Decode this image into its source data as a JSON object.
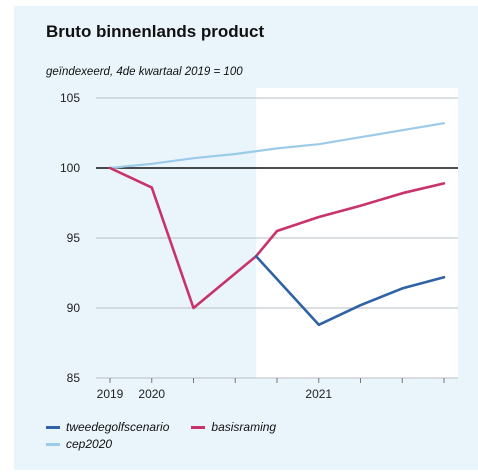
{
  "chart_data": {
    "type": "line",
    "title": "Bruto binnenlands product",
    "subtitle": "geïndexeerd, 4de kwartaal 2019 = 100",
    "xlabel": "",
    "ylabel": "",
    "ylim": [
      85,
      105
    ],
    "yticks": [
      85,
      90,
      95,
      100,
      105
    ],
    "ytick_labels": [
      "85",
      "90",
      "95",
      "100",
      "105"
    ],
    "x_quarters": [
      "2019K4",
      "2020K1",
      "2020K2",
      "2020K3",
      "2020K4",
      "2021K1",
      "2021K2",
      "2021K3",
      "2021K4"
    ],
    "xtick_labels": [
      {
        "label": "2019",
        "at": 0
      },
      {
        "label": "2020",
        "at": 1
      },
      {
        "label": "2021",
        "at": 5
      }
    ],
    "shaded_from": 3.5,
    "reference_line": 100,
    "grid": "horizontal",
    "legend_position": "bottom",
    "series": [
      {
        "name": "tweedegolfscenario",
        "color": "#2f63a5",
        "x": [
          3.5,
          5,
          6,
          7,
          8
        ],
        "values": [
          93.7,
          88.8,
          90.2,
          91.4,
          92.2
        ]
      },
      {
        "name": "basisraming",
        "color": "#c8336b",
        "x": [
          0,
          1,
          2,
          3.5,
          4,
          5,
          6,
          7,
          8
        ],
        "values": [
          100,
          98.6,
          90.0,
          93.7,
          95.5,
          96.5,
          97.3,
          98.2,
          98.9
        ]
      },
      {
        "name": "cep2020",
        "color": "#9ccbea",
        "x": [
          0,
          1,
          2,
          3,
          4,
          5,
          6,
          7,
          8
        ],
        "values": [
          100,
          100.3,
          100.7,
          101.0,
          101.4,
          101.7,
          102.2,
          102.7,
          103.2
        ]
      }
    ]
  },
  "legend": {
    "row1": [
      {
        "name": "tweedegolfscenario",
        "color": "#2f63a5"
      },
      {
        "name": "basisraming",
        "color": "#c8336b"
      }
    ],
    "row2": [
      {
        "name": "cep2020",
        "color": "#9ccbea"
      }
    ]
  }
}
